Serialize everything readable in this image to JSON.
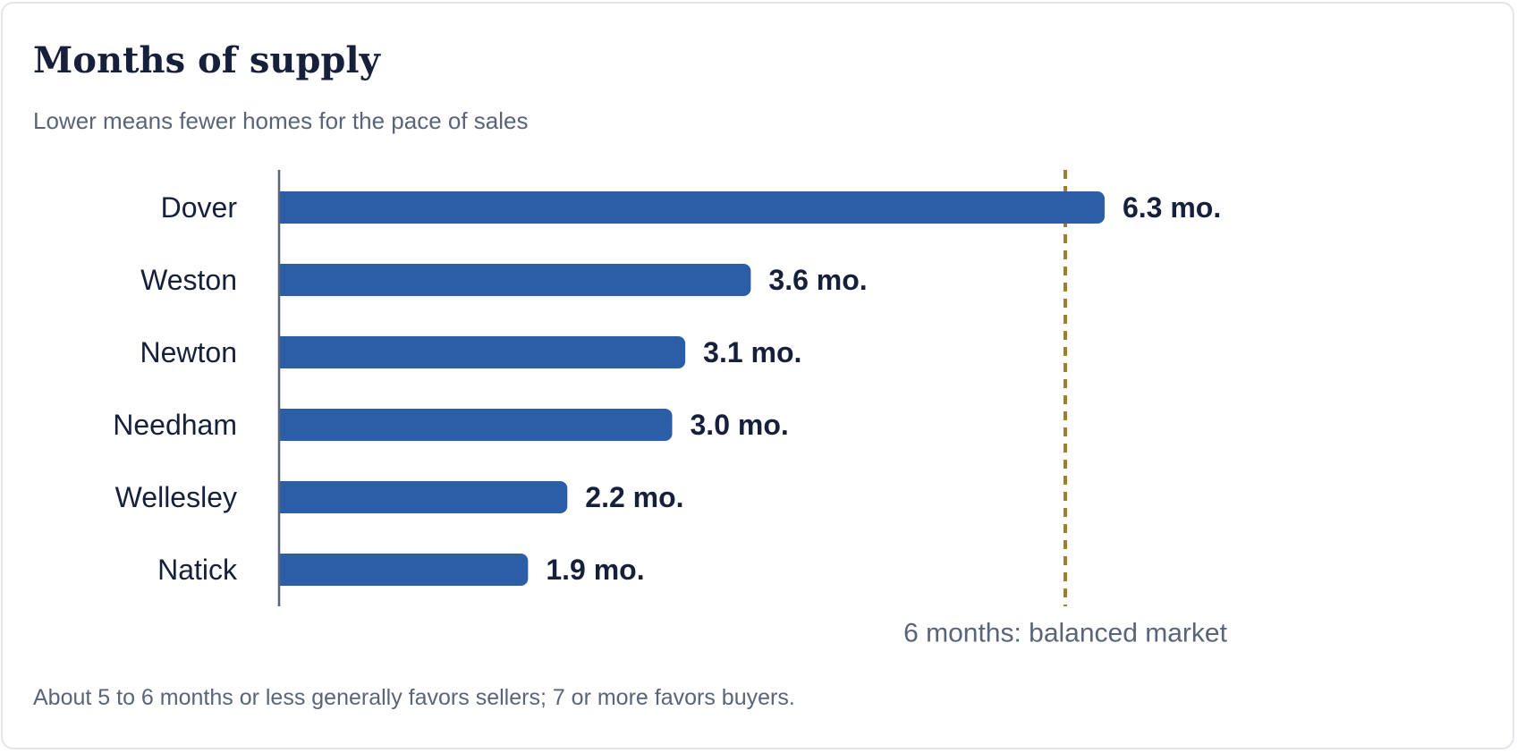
{
  "card": {
    "title": "Months of supply",
    "subtitle": "Lower means fewer homes for the pace of sales",
    "footnote": "About 5 to 6 months or less generally favors sellers; 7 or more favors buyers."
  },
  "chart_data": {
    "type": "bar",
    "orientation": "horizontal",
    "title": "Months of supply",
    "subtitle": "Lower means fewer homes for the pace of sales",
    "categories": [
      "Dover",
      "Weston",
      "Newton",
      "Needham",
      "Wellesley",
      "Natick"
    ],
    "values": [
      6.3,
      3.6,
      3.1,
      3.0,
      2.2,
      1.9
    ],
    "value_labels": [
      "6.3 mo.",
      "3.6 mo.",
      "3.1 mo.",
      "3.0 mo.",
      "2.2 mo.",
      "1.9 mo."
    ],
    "xlim": [
      0,
      7.5
    ],
    "grid": false,
    "legend": "none",
    "reference_line": {
      "value": 6,
      "label": "6 months: balanced market",
      "style": "dashed",
      "color": "#a17d2c"
    },
    "bar_color": "#2c5ea8",
    "text_color": "#16203a",
    "muted_text_color": "#5a6478",
    "axis_color": "#5a6478"
  }
}
